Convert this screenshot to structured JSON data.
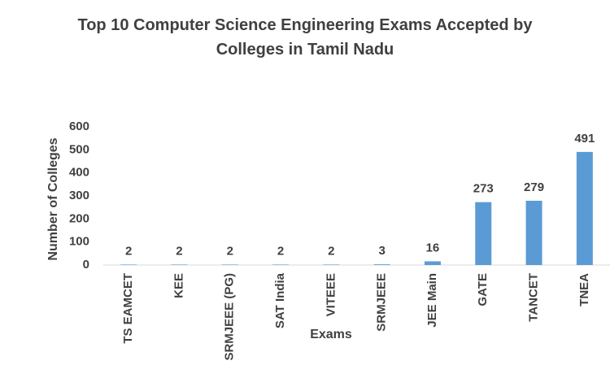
{
  "chart_data": {
    "type": "bar",
    "title": "Top 10 Computer Science Engineering Exams Accepted by Colleges in Tamil Nadu",
    "x_label": "Exams",
    "y_label": "Number of Colleges",
    "categories": [
      "TS EAMCET",
      "KEE",
      "SRMJEEE (PG)",
      "SAT India",
      "VITEEE",
      "SRMJEEE",
      "JEE Main",
      "GATE",
      "TANCET",
      "TNEA"
    ],
    "values": [
      2,
      2,
      2,
      2,
      2,
      3,
      16,
      273,
      279,
      491
    ],
    "color": "#5b9bd5",
    "ylim": [
      0,
      600
    ],
    "yticks": [
      0,
      100,
      200,
      300,
      400,
      500,
      600
    ],
    "grid": false
  }
}
